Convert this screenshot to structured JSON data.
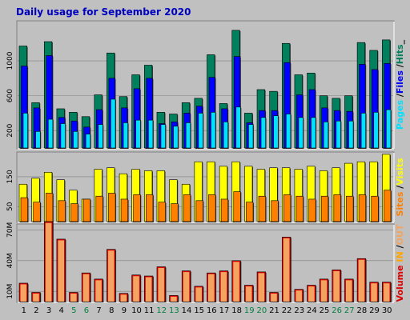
{
  "chart_data": {
    "type": "bar",
    "title": "Daily usage for September 2020",
    "categories": [
      "1",
      "2",
      "3",
      "4",
      "5",
      "6",
      "7",
      "8",
      "9",
      "10",
      "11",
      "12",
      "13",
      "14",
      "15",
      "16",
      "17",
      "18",
      "19",
      "20",
      "21",
      "22",
      "23",
      "24",
      "25",
      "26",
      "27",
      "28",
      "29",
      "30"
    ],
    "weekend_days": [
      "5",
      "6",
      "12",
      "13",
      "19",
      "20",
      "26",
      "27"
    ],
    "colors": {
      "background": "#c0c0c0",
      "title": "#0000c0",
      "day": "#000000",
      "weekend_day": "#007f3f",
      "hits": "#00805c",
      "files": "#0000ff",
      "pages": "#00e0ff",
      "visits": "#ffff00",
      "sites": "#ff8000",
      "volume": "#dd0000",
      "in": "#f4a460",
      "out": "#ffa500"
    },
    "panels": [
      {
        "name": "top",
        "ylim": [
          0,
          1450
        ],
        "yticks": [
          "200",
          "600",
          "1000"
        ],
        "ytick_values": [
          200,
          600,
          1000
        ],
        "right_label": [
          {
            "text": "Pages",
            "color": "#00e0ff"
          },
          {
            "text": " /",
            "color": "#000000"
          },
          {
            "text": "Files",
            "color": "#0000ff"
          },
          {
            "text": " /",
            "color": "#000000"
          },
          {
            "text": "Hits",
            "color": "#00805c"
          },
          {
            "text": "_",
            "color": "#000000"
          }
        ],
        "series": [
          {
            "name": "Hits",
            "values": [
              1170,
              520,
              1220,
              450,
              410,
              360,
              610,
              1090,
              590,
              840,
              950,
              410,
              390,
              520,
              570,
              1070,
              510,
              1350,
              400,
              670,
              650,
              1200,
              840,
              860,
              600,
              570,
              600,
              1210,
              1120,
              1240
            ]
          },
          {
            "name": "Files",
            "values": [
              940,
              460,
              1060,
              350,
              310,
              240,
              440,
              800,
              460,
              680,
              800,
              280,
              300,
              400,
              480,
              810,
              450,
              1050,
              290,
              430,
              430,
              980,
              610,
              670,
              460,
              430,
              420,
              960,
              900,
              970
            ]
          },
          {
            "name": "Pages",
            "values": [
              400,
              190,
              330,
              280,
              190,
              160,
              270,
              560,
              290,
              320,
              320,
              270,
              250,
              290,
              400,
              410,
              300,
              470,
              270,
              350,
              370,
              390,
              350,
              350,
              300,
              310,
              310,
              400,
              410,
              440
            ]
          }
        ]
      },
      {
        "name": "middle",
        "ylim": [
          0,
          230
        ],
        "yticks": [
          "50",
          "150"
        ],
        "ytick_values": [
          50,
          150
        ],
        "right_label": [
          {
            "text": "Sites",
            "color": "#ff8000"
          },
          {
            "text": " /",
            "color": "#000000"
          },
          {
            "text": "Visits",
            "color": "#ffff00"
          }
        ],
        "series": [
          {
            "name": "Visits",
            "values": [
              125,
              145,
              165,
              140,
              105,
              75,
              175,
              180,
              160,
              175,
              170,
              170,
              140,
              125,
              200,
              200,
              185,
              200,
              185,
              175,
              180,
              180,
              175,
              185,
              170,
              180,
              195,
              200,
              200,
              225
            ]
          },
          {
            "name": "Sites",
            "values": [
              80,
              65,
              95,
              70,
              60,
              75,
              85,
              95,
              75,
              90,
              90,
              65,
              60,
              90,
              70,
              90,
              75,
              100,
              65,
              85,
              70,
              90,
              85,
              75,
              85,
              90,
              85,
              90,
              85,
              105
            ]
          }
        ]
      },
      {
        "name": "bottom",
        "ylim": [
          0,
          75
        ],
        "yticks": [
          "10M",
          "40M",
          "70M"
        ],
        "ytick_values": [
          10,
          40,
          70
        ],
        "right_label": [
          {
            "text": "Volume",
            "color": "#dd0000"
          },
          {
            "text": "  ",
            "color": "#000000"
          },
          {
            "text": "IN",
            "color": "#ffa500"
          },
          {
            "text": " /",
            "color": "#000000"
          },
          {
            "text": "OUT",
            "color": "#f4a460"
          }
        ],
        "series": [
          {
            "name": "Volume",
            "values": [
              18,
              9,
              78,
              61,
              9,
              28,
              22,
              51,
              8,
              26,
              25,
              34,
              6,
              30,
              15,
              28,
              30,
              40,
              16,
              29,
              9,
              63,
              12,
              16,
              22,
              31,
              22,
              42,
              19,
              19
            ]
          }
        ]
      }
    ]
  }
}
